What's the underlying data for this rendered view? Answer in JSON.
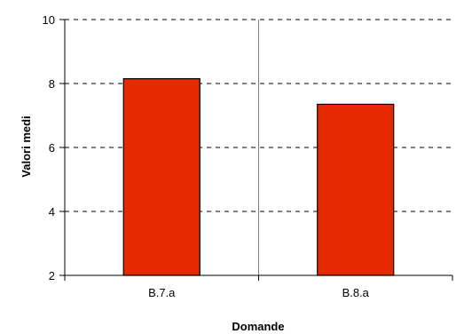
{
  "chart_data": {
    "type": "bar",
    "title": "",
    "xlabel": "Domande",
    "ylabel": "Valori medi",
    "categories": [
      "B.7.a",
      "B.8.a"
    ],
    "values": [
      8.15,
      7.35
    ],
    "ylim": [
      2,
      10
    ],
    "yticks": [
      2,
      4,
      6,
      8,
      10
    ],
    "grid": "horizontal-dashed",
    "legend": "none",
    "colors": {
      "bar_fill": "#e62a00",
      "bar_stroke": "#000000",
      "grid": "#000000",
      "axis": "#000000",
      "divider": "#808080"
    }
  }
}
